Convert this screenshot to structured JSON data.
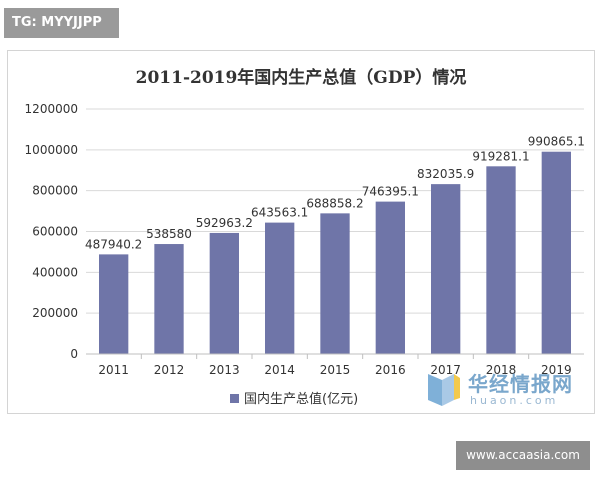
{
  "badge": {
    "text": "TG: MYYJJPP"
  },
  "watermark": {
    "site": "www.accaasia.com"
  },
  "logo": {
    "name_cn": "华经情报网",
    "name_en": "huaon.com"
  },
  "colors": {
    "bar": "#6f75a8",
    "grid": "#d9d9d9",
    "axis": "#bfbfbf",
    "text": "#333333"
  },
  "chart_data": {
    "type": "bar",
    "title": "2011-2019年国内生产总值（GDP）情况",
    "categories": [
      "2011",
      "2012",
      "2013",
      "2014",
      "2015",
      "2016",
      "2017",
      "2018",
      "2019"
    ],
    "series": [
      {
        "name": "国内生产总值(亿元)",
        "values": [
          487940.2,
          538580,
          592963.2,
          643563.1,
          688858.2,
          746395.1,
          832035.9,
          919281.1,
          990865.1
        ],
        "labels": [
          "487940.2",
          "538580",
          "592963.2",
          "643563.1",
          "688858.2",
          "746395.1",
          "832035.9",
          "919281.1",
          "990865.1"
        ]
      }
    ],
    "ylim": [
      0,
      1200000
    ],
    "yticks": [
      "0",
      "200000",
      "400000",
      "600000",
      "800000",
      "1000000",
      "1200000"
    ],
    "grid": true,
    "legend": "bottom"
  }
}
